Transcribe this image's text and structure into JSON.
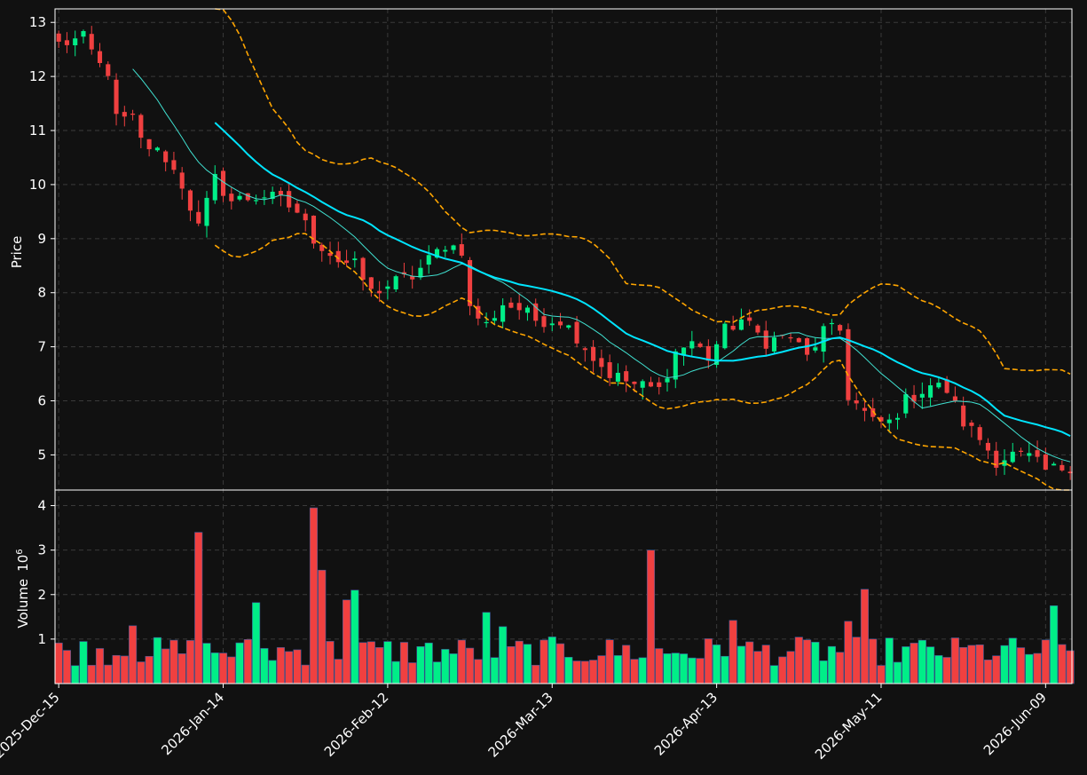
{
  "colors": {
    "background": "#111111",
    "panel_border": "#ffffff",
    "grid": "#3a3a3a",
    "up": "#00ee88",
    "down": "#f04040",
    "ma_fast": "#40e0d0",
    "ma_slow": "#00e5ff",
    "bollinger": "#ffa500"
  },
  "chart_data": {
    "type": "candlestick",
    "grid": true,
    "price_axis": {
      "label": "Price",
      "ylim": [
        4.35,
        13.25
      ],
      "ticks": [
        5,
        6,
        7,
        8,
        9,
        10,
        11,
        12,
        13
      ]
    },
    "volume_axis": {
      "label": "Volume",
      "multiplier_base": "10",
      "multiplier_exp": "6",
      "ylim": [
        0,
        4.35
      ],
      "ticks": [
        1,
        2,
        3,
        4
      ]
    },
    "x_ticks": [
      {
        "label": "2025-Dec-15",
        "index": 0
      },
      {
        "label": "2026-Jan-14",
        "index": 20
      },
      {
        "label": "2026-Feb-12",
        "index": 40
      },
      {
        "label": "2026-Mar-13",
        "index": 60
      },
      {
        "label": "2026-Apr-13",
        "index": 80
      },
      {
        "label": "2026-May-11",
        "index": 100
      },
      {
        "label": "2026-Jun-09",
        "index": 120
      }
    ],
    "candle_count": 124,
    "ohlc_keypoints": [
      [
        0,
        12.6
      ],
      [
        3,
        12.7
      ],
      [
        5,
        12.2
      ],
      [
        6,
        12.1
      ],
      [
        7,
        11.2
      ],
      [
        9,
        11.2
      ],
      [
        10,
        10.8
      ],
      [
        13,
        10.5
      ],
      [
        15,
        10.0
      ],
      [
        17,
        9.2
      ],
      [
        19,
        10.1
      ],
      [
        21,
        9.7
      ],
      [
        25,
        9.8
      ],
      [
        27,
        9.7
      ],
      [
        29,
        9.5
      ],
      [
        31,
        9.0
      ],
      [
        34,
        8.6
      ],
      [
        36,
        8.5
      ],
      [
        38,
        8.0
      ],
      [
        41,
        8.2
      ],
      [
        43,
        8.3
      ],
      [
        45,
        8.6
      ],
      [
        47,
        8.9
      ],
      [
        49,
        8.8
      ],
      [
        50,
        7.7
      ],
      [
        52,
        7.4
      ],
      [
        54,
        7.8
      ],
      [
        56,
        7.7
      ],
      [
        58,
        7.5
      ],
      [
        61,
        7.5
      ],
      [
        63,
        7.2
      ],
      [
        65,
        6.8
      ],
      [
        67,
        6.5
      ],
      [
        70,
        6.3
      ],
      [
        73,
        6.2
      ],
      [
        75,
        6.9
      ],
      [
        77,
        7.1
      ],
      [
        79,
        6.8
      ],
      [
        81,
        7.3
      ],
      [
        83,
        7.5
      ],
      [
        86,
        7.1
      ],
      [
        89,
        7.2
      ],
      [
        91,
        6.8
      ],
      [
        93,
        7.3
      ],
      [
        95,
        7.3
      ],
      [
        96,
        6.1
      ],
      [
        99,
        5.6
      ],
      [
        101,
        5.6
      ],
      [
        103,
        6.0
      ],
      [
        106,
        6.3
      ],
      [
        108,
        6.2
      ],
      [
        110,
        5.6
      ],
      [
        112,
        5.3
      ],
      [
        114,
        4.9
      ],
      [
        116,
        5.0
      ],
      [
        118,
        4.95
      ],
      [
        120,
        4.7
      ],
      [
        123,
        4.8
      ]
    ],
    "volume_spikes": [
      [
        17,
        3.4
      ],
      [
        31,
        3.95
      ],
      [
        32,
        2.55
      ],
      [
        36,
        2.1
      ],
      [
        72,
        3.0
      ],
      [
        98,
        2.12
      ],
      [
        24,
        1.82
      ],
      [
        52,
        1.6
      ],
      [
        82,
        1.42
      ],
      [
        121,
        1.75
      ],
      [
        96,
        1.4
      ],
      [
        9,
        1.3
      ],
      [
        54,
        1.28
      ],
      [
        35,
        1.88
      ]
    ],
    "indicators": [
      {
        "id": "ma_fast",
        "window": 10,
        "style": "thin"
      },
      {
        "id": "ma_slow",
        "window": 20,
        "style": "thick"
      },
      {
        "id": "bollinger",
        "window": 20,
        "k": 2,
        "style": "dashed"
      }
    ]
  }
}
